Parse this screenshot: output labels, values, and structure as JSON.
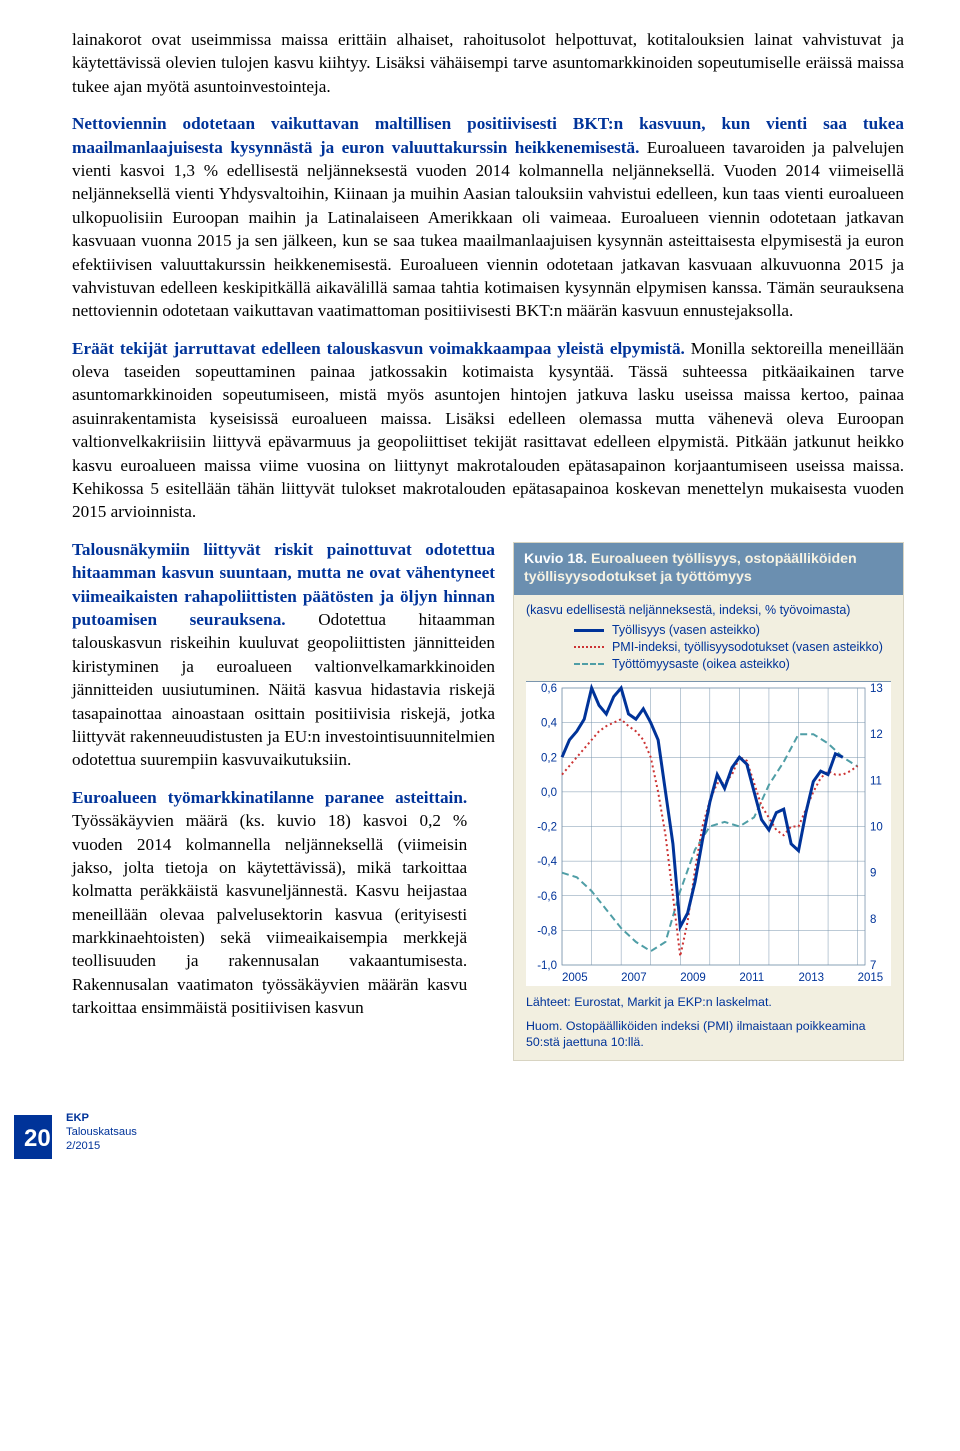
{
  "p1": {
    "a": "lainakorot ovat useimmissa maissa erittäin alhaiset, rahoitusolot helpottuvat, kotitalouksien lainat vahvistuvat ja käytettävissä olevien tulojen kasvu kiihtyy. Lisäksi vähäisempi tarve asuntomarkkinoiden sopeutumiselle eräissä maissa tukee ajan myötä asuntoinvestointeja."
  },
  "p2": {
    "lead": "Nettoviennin odotetaan vaikuttavan maltillisen positiivisesti BKT:n kasvuun, kun vienti saa tukea maailmanlaajuisesta kysynnästä ja euron valuuttakurssin heikkenemisestä.",
    "rest": " Euroalueen tavaroiden ja palvelujen vienti kasvoi 1,3 % edellisestä neljänneksestä vuoden 2014 kolmannella neljänneksellä. Vuoden 2014 viimeisellä neljänneksellä vienti Yhdysvaltoihin, Kiinaan ja muihin Aasian talouksiin vahvistui edelleen, kun taas vienti euroalueen ulkopuolisiin Euroopan maihin ja Latinalaiseen Amerikkaan oli vaimeaa. Euroalueen viennin odotetaan jatkavan kasvuaan vuonna 2015 ja sen jälkeen, kun se saa tukea maailmanlaajuisen kysynnän asteittaisesta elpymisestä ja euron efektiivisen valuuttakurssin heikkenemisestä. Euroalueen viennin odotetaan jatkavan kasvuaan alkuvuonna 2015 ja vahvistuvan edelleen keskipitkällä aikavälillä samaa tahtia kotimaisen kysynnän elpymisen kanssa. Tämän seurauksena nettoviennin odotetaan vaikuttavan vaatimattoman positiivisesti BKT:n määrän kasvuun ennustejaksolla."
  },
  "p3": {
    "lead": "Eräät tekijät jarruttavat edelleen talouskasvun voimakkaampaa yleistä elpymistä.",
    "rest": " Monilla sektoreilla meneillään oleva taseiden sopeuttaminen painaa jatkossakin kotimaista kysyntää. Tässä suhteessa pitkäaikainen tarve asuntomarkkinoiden sopeutumiseen, mistä myös asuntojen hintojen jatkuva lasku useissa maissa kertoo, painaa asuinrakentamista kyseisissä euroalueen maissa. Lisäksi edelleen olemassa mutta vähenevä oleva Euroopan valtionvelkakriisiin liittyvä epävarmuus ja geopoliittiset tekijät rasittavat edelleen elpymistä. Pitkään jatkunut heikko kasvu euroalueen maissa viime vuosina on liittynyt makrotalouden epätasapainon korjaantumiseen useissa maissa. Kehikossa 5 esitellään tähän liittyvät tulokset makrotalouden epätasapainoa koskevan menettelyn mukaisesta vuoden 2015 arvioinnista."
  },
  "p4": {
    "lead1": "Talousnäkymiin liittyvät riskit painottuvat odotettua hitaamman kasvun suuntaan, mutta ne ovat vähentyneet viimeaikaisten rahapoliittisten päätösten ja öljyn hinnan putoamisen seurauksena.",
    "rest1": " Odotettua hitaamman talouskasvun riskeihin kuuluvat geopoliittisten jännitteiden kiristyminen ja euroalueen valtionvelkamarkkinoiden jännitteiden uusiutuminen. Näitä kasvua hidastavia riskejä tasapainottaa ainoastaan osittain positiivisia riskejä, jotka liittyvät rakenneuudistusten ja EU:n investointisuunnitelmien odotettua suurempiin kasvuvaikutuksiin."
  },
  "p5": {
    "lead": "Euroalueen työmarkkinatilanne paranee asteittain.",
    "rest": " Työssäkäyvien määrä (ks. kuvio 18) kasvoi 0,2 % vuoden 2014 kolmannella neljänneksellä (viimeisin jakso, jolta tietoja on käytettävissä), mikä tarkoittaa kolmatta peräkkäistä kasvuneljännestä. Kasvu heijastaa meneillään olevaa palvelusektorin kasvua (erityisesti markkinaehtoisten) sekä viimeaikaisempia merkkejä teollisuuden ja rakennusalan vakaantumisesta. Rakennusalan vaatimaton työssäkäyvien määrän kasvu tarkoittaa ensimmäistä positiivisen kasvun"
  },
  "chart": {
    "title_a": "Kuvio 18.",
    "title_b": " Euroalueen työllisyys, ostopäälliköiden työllisyysodotukset ja työttömyys",
    "subtitle": "(kasvu edellisestä neljänneksestä, indeksi, % työvoimasta)",
    "legend": {
      "s1": "Työllisyys (vasen asteikko)",
      "s2": "PMI-indeksi, työllisyysodotukset (vasen asteikko)",
      "s3": "Työttömyysaste (oikea asteikko)"
    },
    "colors": {
      "s1": "#003399",
      "s2": "#cc3333",
      "s3": "#4f9ea6",
      "grid": "#7a95ad",
      "bg": "#ffffff"
    },
    "left_axis": {
      "min": -1.0,
      "max": 0.6,
      "step": 0.2,
      "ticks": [
        "0,6",
        "0,4",
        "0,2",
        "0,0",
        "-0,2",
        "-0,4",
        "-0,6",
        "-0,8",
        "-1,0"
      ]
    },
    "right_axis": {
      "min": 7,
      "max": 13,
      "step": 1,
      "ticks": [
        "13",
        "12",
        "11",
        "10",
        "9",
        "8",
        "7"
      ]
    },
    "x_ticks": [
      "2005",
      "2007",
      "2009",
      "2011",
      "2013",
      "2015"
    ],
    "x_range": [
      2005,
      2015.25
    ],
    "series": {
      "employment_left": [
        [
          2005.0,
          0.2
        ],
        [
          2005.25,
          0.3
        ],
        [
          2005.5,
          0.35
        ],
        [
          2005.75,
          0.42
        ],
        [
          2006.0,
          0.6
        ],
        [
          2006.25,
          0.5
        ],
        [
          2006.5,
          0.45
        ],
        [
          2006.75,
          0.55
        ],
        [
          2007.0,
          0.6
        ],
        [
          2007.25,
          0.45
        ],
        [
          2007.5,
          0.42
        ],
        [
          2007.75,
          0.48
        ],
        [
          2008.0,
          0.4
        ],
        [
          2008.25,
          0.3
        ],
        [
          2008.5,
          0.0
        ],
        [
          2008.75,
          -0.3
        ],
        [
          2009.0,
          -0.78
        ],
        [
          2009.25,
          -0.7
        ],
        [
          2009.5,
          -0.52
        ],
        [
          2009.75,
          -0.28
        ],
        [
          2010.0,
          -0.06
        ],
        [
          2010.25,
          0.1
        ],
        [
          2010.5,
          0.02
        ],
        [
          2010.75,
          0.14
        ],
        [
          2011.0,
          0.2
        ],
        [
          2011.25,
          0.16
        ],
        [
          2011.5,
          0.0
        ],
        [
          2011.75,
          -0.16
        ],
        [
          2012.0,
          -0.22
        ],
        [
          2012.25,
          -0.12
        ],
        [
          2012.5,
          -0.1
        ],
        [
          2012.75,
          -0.3
        ],
        [
          2013.0,
          -0.34
        ],
        [
          2013.25,
          -0.12
        ],
        [
          2013.5,
          0.06
        ],
        [
          2013.75,
          0.12
        ],
        [
          2014.0,
          0.1
        ],
        [
          2014.25,
          0.22
        ],
        [
          2014.5,
          0.2
        ]
      ],
      "pmi_left": [
        [
          2005.0,
          0.1
        ],
        [
          2005.25,
          0.15
        ],
        [
          2005.5,
          0.2
        ],
        [
          2005.75,
          0.25
        ],
        [
          2006.0,
          0.3
        ],
        [
          2006.25,
          0.35
        ],
        [
          2006.5,
          0.38
        ],
        [
          2006.75,
          0.4
        ],
        [
          2007.0,
          0.42
        ],
        [
          2007.25,
          0.38
        ],
        [
          2007.5,
          0.35
        ],
        [
          2007.75,
          0.3
        ],
        [
          2008.0,
          0.2
        ],
        [
          2008.25,
          0.0
        ],
        [
          2008.5,
          -0.25
        ],
        [
          2008.75,
          -0.6
        ],
        [
          2009.0,
          -0.95
        ],
        [
          2009.25,
          -0.75
        ],
        [
          2009.5,
          -0.45
        ],
        [
          2009.75,
          -0.2
        ],
        [
          2010.0,
          -0.05
        ],
        [
          2010.25,
          0.05
        ],
        [
          2010.5,
          0.05
        ],
        [
          2010.75,
          0.1
        ],
        [
          2011.0,
          0.2
        ],
        [
          2011.25,
          0.18
        ],
        [
          2011.5,
          0.05
        ],
        [
          2011.75,
          -0.08
        ],
        [
          2012.0,
          -0.15
        ],
        [
          2012.25,
          -0.22
        ],
        [
          2012.5,
          -0.25
        ],
        [
          2012.75,
          -0.2
        ],
        [
          2013.0,
          -0.2
        ],
        [
          2013.25,
          -0.1
        ],
        [
          2013.5,
          0.0
        ],
        [
          2013.75,
          0.08
        ],
        [
          2014.0,
          0.12
        ],
        [
          2014.25,
          0.1
        ],
        [
          2014.5,
          0.1
        ],
        [
          2014.75,
          0.12
        ],
        [
          2015.0,
          0.15
        ]
      ],
      "unemployment_right": [
        [
          2005.0,
          9.0
        ],
        [
          2005.5,
          8.9
        ],
        [
          2006.0,
          8.6
        ],
        [
          2006.5,
          8.2
        ],
        [
          2007.0,
          7.8
        ],
        [
          2007.5,
          7.5
        ],
        [
          2008.0,
          7.3
        ],
        [
          2008.5,
          7.5
        ],
        [
          2009.0,
          8.6
        ],
        [
          2009.5,
          9.5
        ],
        [
          2010.0,
          10.0
        ],
        [
          2010.5,
          10.1
        ],
        [
          2011.0,
          10.0
        ],
        [
          2011.5,
          10.2
        ],
        [
          2012.0,
          10.9
        ],
        [
          2012.5,
          11.4
        ],
        [
          2013.0,
          12.0
        ],
        [
          2013.5,
          12.0
        ],
        [
          2014.0,
          11.8
        ],
        [
          2014.5,
          11.5
        ],
        [
          2015.0,
          11.3
        ]
      ]
    },
    "source": "Lähteet: Eurostat, Markit ja EKP:n laskelmat.",
    "note": "Huom. Ostopäälliköiden indeksi (PMI) ilmaistaan poikkeamina 50:stä jaettuna 10:llä."
  },
  "footer": {
    "page": "20",
    "l1": "EKP",
    "l2": "Talouskatsaus",
    "l3": "2/2015"
  }
}
